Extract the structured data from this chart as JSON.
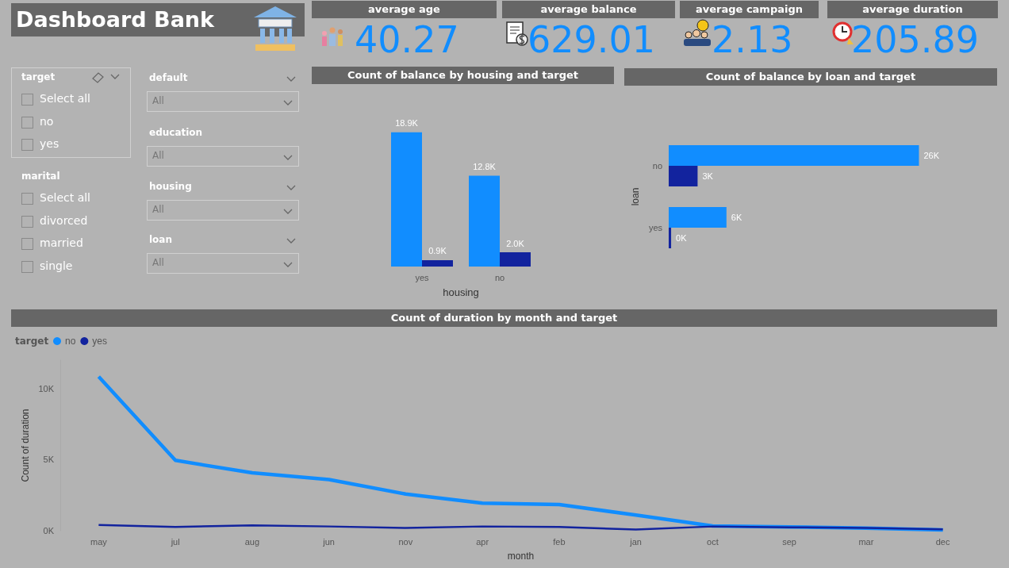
{
  "chart_data": [
    {
      "type": "other",
      "title": "Dashboard Bank",
      "categories": [
        "average age",
        "average balance",
        "average campaign",
        "average duration"
      ],
      "values": [
        40.27,
        629.01,
        2.13,
        205.89
      ],
      "color": "#118dff",
      "data_labels": true
    },
    {
      "type": "other",
      "annotations": [
        "target",
        "Select all",
        "no",
        "yes",
        "marital",
        "Select all",
        "divorced",
        "married",
        "single",
        "default",
        "All",
        "education",
        "All",
        "housing",
        "All",
        "loan",
        "All"
      ]
    },
    {
      "type": "bar",
      "title": "Count of balance by housing and target",
      "xlabel": "housing",
      "categories": [
        "yes",
        "no"
      ],
      "series": [
        {
          "color": "#118dff",
          "values": [
            18900,
            12800
          ],
          "value_labels": [
            "18.9K",
            "12.8K"
          ]
        },
        {
          "color": "#12239e",
          "values": [
            900,
            2000
          ],
          "value_labels": [
            "0.9K",
            "2.0K"
          ]
        }
      ]
    },
    {
      "type": "bar",
      "orientation": "horizontal",
      "title": "Count of balance by loan and target",
      "ylabel": "loan",
      "categories": [
        "no",
        "yes"
      ],
      "series": [
        {
          "color": "#118dff",
          "values": [
            26000,
            6000
          ],
          "value_labels": [
            "26K",
            "6K"
          ]
        },
        {
          "color": "#12239e",
          "values": [
            3000,
            250
          ],
          "value_labels": [
            "3K",
            "0K"
          ]
        }
      ]
    },
    {
      "type": "line",
      "title": "Count of duration by month and target",
      "xlabel": "month",
      "ylabel": "Count of duration",
      "legend_title": "target",
      "legend": "top left",
      "categories": [
        "may",
        "jul",
        "aug",
        "jun",
        "nov",
        "apr",
        "feb",
        "jan",
        "oct",
        "sep",
        "mar",
        "dec"
      ],
      "ylim": [
        0,
        12000
      ],
      "yticks": [
        {
          "value": 0,
          "label": "0K"
        },
        {
          "value": 5000,
          "label": "5K"
        },
        {
          "value": 10000,
          "label": "10K"
        }
      ],
      "series": [
        {
          "name": "no",
          "color": "#118dff",
          "values": [
            10840,
            4950,
            4070,
            3600,
            2580,
            1940,
            1840,
            1100,
            330,
            270,
            180,
            50
          ]
        },
        {
          "name": "yes",
          "color": "#12239e",
          "values": [
            410,
            270,
            380,
            300,
            190,
            300,
            270,
            80,
            300,
            240,
            200,
            100
          ]
        }
      ]
    }
  ]
}
